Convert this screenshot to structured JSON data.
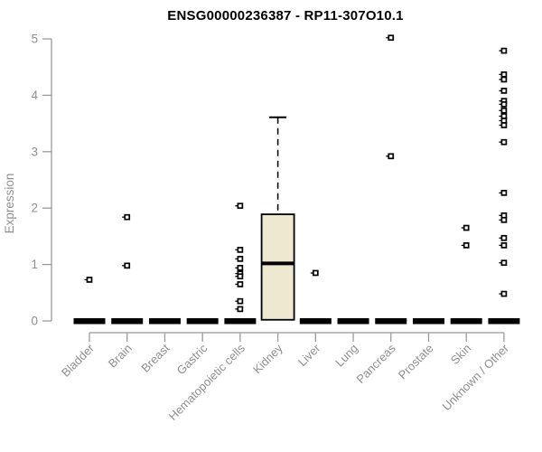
{
  "page": {
    "background": "#ffffff"
  },
  "chart_data": {
    "type": "boxplot",
    "title": "ENSG00000236387 - RP11-307O10.1",
    "ylabel": "Expression",
    "xlabel": "",
    "ylim": [
      0,
      5
    ],
    "yticks": [
      0,
      1,
      2,
      3,
      4,
      5
    ],
    "grid": false,
    "legend": "none",
    "box_fill": "#EDE8D0",
    "box_stroke": "#000000",
    "axis_color": "#9a9a9a",
    "label_color": "#8f8f8f",
    "title_color": "#000000",
    "categories": [
      "Bladder",
      "Brain",
      "Breast",
      "Gastric",
      "Hematopoietic cells",
      "Kidney",
      "Liver",
      "Lung",
      "Pancreas",
      "Prostate",
      "Skin",
      "Unknown / Other"
    ],
    "boxes": [
      {
        "category": "Bladder",
        "q1": 0,
        "median": 0,
        "q3": 0,
        "whisker_low": 0,
        "whisker_high": 0,
        "outliers": [
          0.73
        ]
      },
      {
        "category": "Brain",
        "q1": 0,
        "median": 0,
        "q3": 0,
        "whisker_low": 0,
        "whisker_high": 0,
        "outliers": [
          1.84,
          0.98
        ]
      },
      {
        "category": "Breast",
        "q1": 0,
        "median": 0,
        "q3": 0,
        "whisker_low": 0,
        "whisker_high": 0,
        "outliers": []
      },
      {
        "category": "Gastric",
        "q1": 0,
        "median": 0,
        "q3": 0,
        "whisker_low": 0,
        "whisker_high": 0,
        "outliers": []
      },
      {
        "category": "Hematopoietic cells",
        "q1": 0,
        "median": 0,
        "q3": 0,
        "whisker_low": 0,
        "whisker_high": 0,
        "outliers": [
          2.04,
          1.26,
          1.1,
          0.94,
          0.84,
          0.79,
          0.65,
          0.35,
          0.21
        ]
      },
      {
        "category": "Kidney",
        "q1": 0.02,
        "median": 1.02,
        "q3": 1.89,
        "whisker_low": 0.02,
        "whisker_high": 3.61,
        "outliers": []
      },
      {
        "category": "Liver",
        "q1": 0,
        "median": 0,
        "q3": 0,
        "whisker_low": 0,
        "whisker_high": 0,
        "outliers": [
          0.85
        ]
      },
      {
        "category": "Lung",
        "q1": 0,
        "median": 0,
        "q3": 0,
        "whisker_low": 0,
        "whisker_high": 0,
        "outliers": []
      },
      {
        "category": "Pancreas",
        "q1": 0,
        "median": 0,
        "q3": 0,
        "whisker_low": 0,
        "whisker_high": 0,
        "outliers": [
          5.02,
          2.92
        ]
      },
      {
        "category": "Prostate",
        "q1": 0,
        "median": 0,
        "q3": 0,
        "whisker_low": 0,
        "whisker_high": 0,
        "outliers": []
      },
      {
        "category": "Skin",
        "q1": 0,
        "median": 0,
        "q3": 0,
        "whisker_low": 0,
        "whisker_high": 0,
        "outliers": [
          1.65,
          1.34
        ]
      },
      {
        "category": "Unknown / Other",
        "q1": 0,
        "median": 0,
        "q3": 0,
        "whisker_low": 0,
        "whisker_high": 0,
        "outliers": [
          4.79,
          4.37,
          4.28,
          4.08,
          3.9,
          3.84,
          3.73,
          3.63,
          3.55,
          3.47,
          3.17,
          2.27,
          1.87,
          1.79,
          1.47,
          1.34,
          1.03,
          0.48
        ]
      }
    ]
  }
}
